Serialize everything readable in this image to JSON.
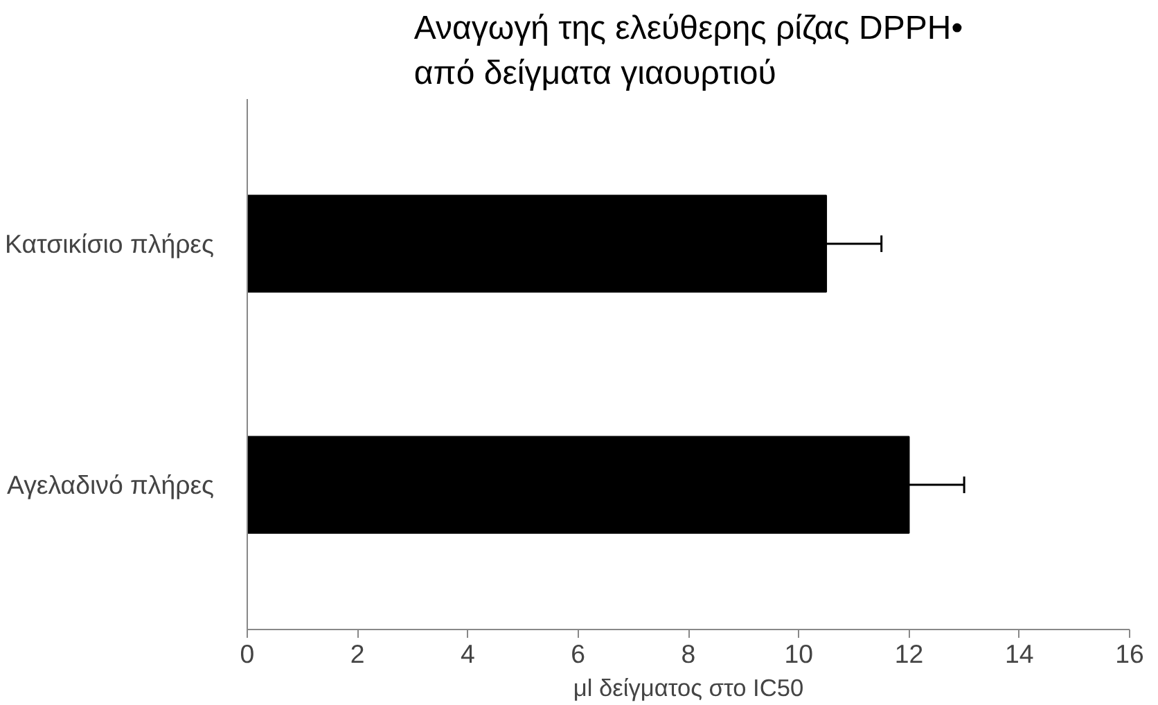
{
  "chart_data": {
    "type": "bar",
    "orientation": "horizontal",
    "title": "Αναγωγή της ελεύθερης ρίζας DPPH•\nαπό δείγματα γιαουρτιού",
    "xlabel": "μl δείγματος στο IC50",
    "categories": [
      "Κατσικίσιο πλήρες",
      "Αγελαδινό πλήρες"
    ],
    "values": [
      10.5,
      12.0
    ],
    "errors": [
      [
        10.5,
        11.5
      ],
      [
        12.0,
        13.0
      ]
    ],
    "color": "#000000",
    "xlim": [
      0,
      16
    ],
    "xticks": [
      0,
      2,
      4,
      6,
      8,
      10,
      12,
      14,
      16
    ],
    "grid": false
  }
}
